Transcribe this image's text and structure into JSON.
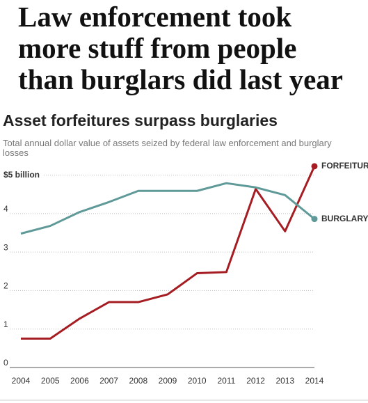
{
  "headline": [
    "Law enforcement took",
    "more stuff from people",
    "than burglars did last year"
  ],
  "chart_data": {
    "type": "line",
    "title": "Asset forfeitures surpass burglaries",
    "subtitle": "Total annual dollar value of assets seized by federal law enforcement and burglary losses",
    "categories": [
      "2004",
      "2005",
      "2006",
      "2007",
      "2008",
      "2009",
      "2010",
      "2011",
      "2012",
      "2013",
      "2014"
    ],
    "series": [
      {
        "name": "FORFEITURE",
        "color": "#a51d22",
        "values": [
          0.75,
          0.75,
          1.27,
          1.7,
          1.7,
          1.9,
          2.45,
          2.48,
          4.64,
          3.54,
          5.23
        ]
      },
      {
        "name": "BURGLARY",
        "color": "#5f9a99",
        "values": [
          3.48,
          3.68,
          4.04,
          4.3,
          4.59,
          4.59,
          4.59,
          4.79,
          4.68,
          4.48,
          3.86
        ]
      }
    ],
    "ylim": [
      0,
      5.3
    ],
    "yticks": [
      0,
      1,
      2,
      3,
      4,
      {
        "value": 5,
        "label": "$5 billion"
      }
    ],
    "grid": true
  }
}
